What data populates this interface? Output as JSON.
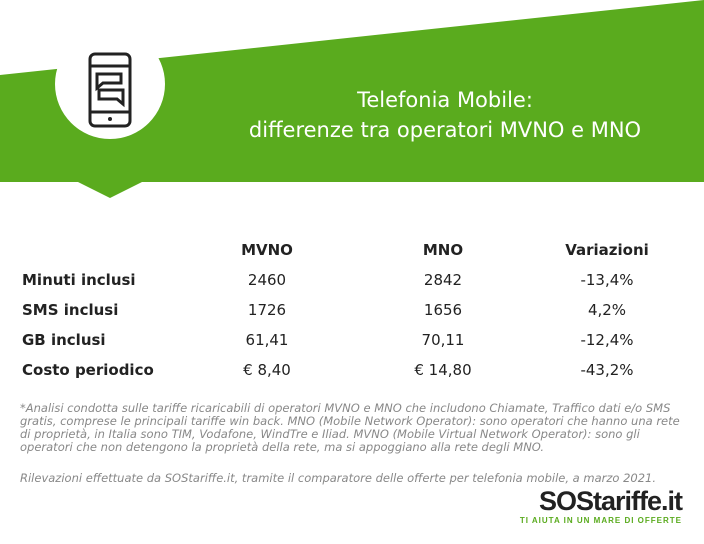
{
  "header": {
    "title": [
      "Telefonia Mobile:",
      "differenze tra operatori MVNO e MNO"
    ]
  },
  "table": {
    "columns": [
      "MVNO",
      "MNO",
      "Variazioni"
    ],
    "rows": [
      [
        "Minuti inclusi",
        "2460",
        "2842",
        "-13,4%"
      ],
      [
        "SMS inclusi",
        "1726",
        "1656",
        "4,2%"
      ],
      [
        "GB inclusi",
        "61,41",
        "70,11",
        "-12,4%"
      ],
      [
        "Costo periodico",
        "€ 8,40",
        "€ 14,80",
        "-43,2%"
      ]
    ]
  },
  "notes": [
    "*Analisi condotta sulle tariffe ricaricabili di operatori MVNO e MNO che includono Chiamate, Traffico dati e/o SMS gratis, comprese le principali tariffe win back. MNO (Mobile Network Operator): sono operatori che hanno una rete di proprietà, in Italia sono TIM, Vodafone, WindTre e Iliad. MVNO (Mobile Virtual Network Operator): sono gli operatori che non detengono la proprietà della rete, ma si appoggiano alla rete degli MNO.",
    "Rilevazioni effettuate da SOStariffe.it, tramite il comparatore delle offerte per telefonia mobile, a marzo 2021."
  ],
  "logo": {
    "name": "SOStariffe.it",
    "tagline": "TI AIUTA IN UN MARE DI OFFERTE"
  }
}
